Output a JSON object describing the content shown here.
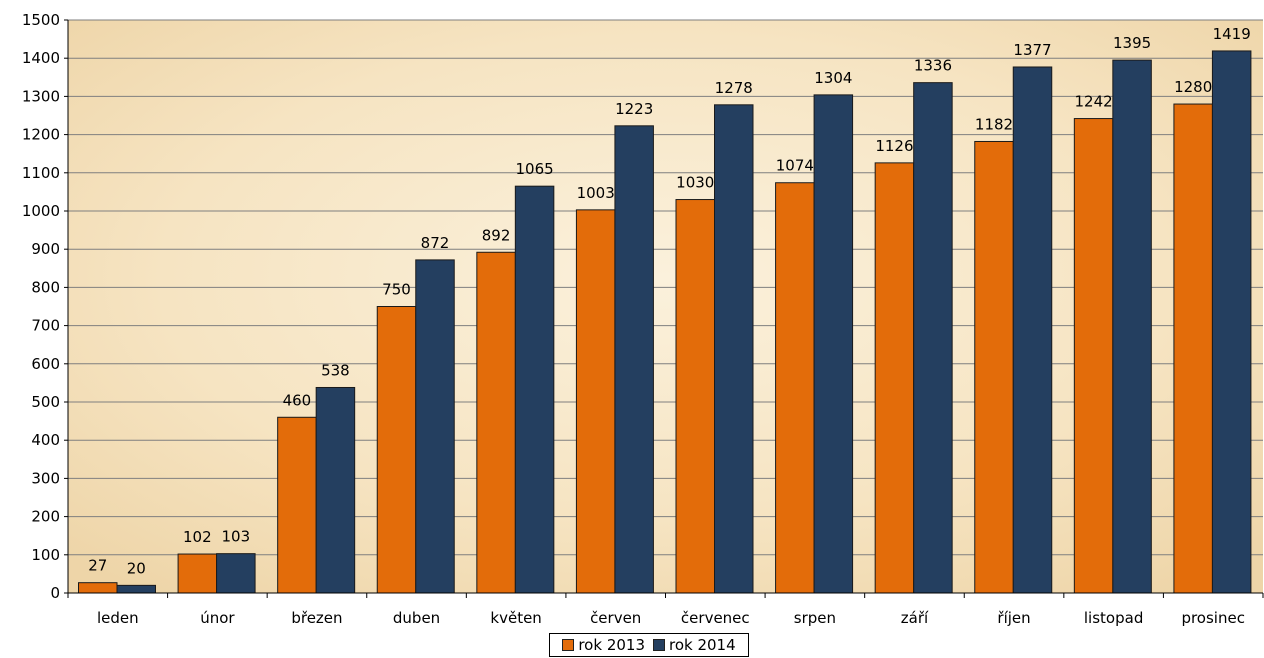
{
  "chart_data": {
    "type": "bar",
    "categories": [
      "leden",
      "únor",
      "březen",
      "duben",
      "květen",
      "červen",
      "červenec",
      "srpen",
      "září",
      "říjen",
      "listopad",
      "prosinec"
    ],
    "series": [
      {
        "name": "rok 2013",
        "color": "#e36c0a",
        "values": [
          27,
          102,
          460,
          750,
          892,
          1003,
          1030,
          1074,
          1126,
          1182,
          1242,
          1280
        ]
      },
      {
        "name": "rok 2014",
        "color": "#243f60",
        "values": [
          20,
          103,
          538,
          872,
          1065,
          1223,
          1278,
          1304,
          1336,
          1377,
          1395,
          1419
        ]
      }
    ],
    "ylim": [
      0,
      1500
    ],
    "yticks": [
      0,
      100,
      200,
      300,
      400,
      500,
      600,
      700,
      800,
      900,
      1000,
      1100,
      1200,
      1300,
      1400,
      1500
    ],
    "grid": true,
    "legend_position": "bottom",
    "background": "#f5e6c8"
  }
}
